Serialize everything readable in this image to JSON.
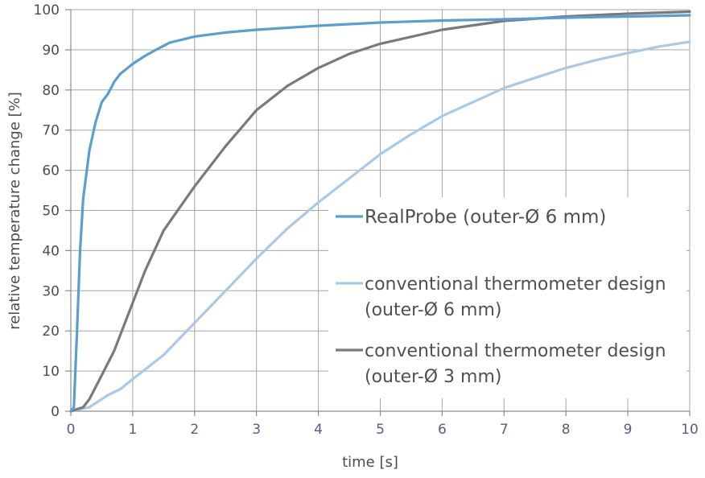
{
  "chart_data": {
    "type": "line",
    "title": "",
    "xlabel": "time [s]",
    "ylabel": "relative temperature change [%]",
    "xlim": [
      0,
      10
    ],
    "ylim": [
      0,
      100
    ],
    "x_ticks": [
      "0",
      "1",
      "2",
      "3",
      "4",
      "5",
      "6",
      "7",
      "8",
      "9",
      "10"
    ],
    "y_ticks": [
      "0",
      "10",
      "20",
      "30",
      "40",
      "50",
      "60",
      "70",
      "80",
      "90",
      "100"
    ],
    "grid": true,
    "legend_position": "inside-right-middle",
    "series": [
      {
        "name": "RealProbe (outer-Ø 6 mm)",
        "color": "#5b9fcf",
        "x": [
          0,
          0.05,
          0.1,
          0.15,
          0.2,
          0.3,
          0.4,
          0.5,
          0.6,
          0.7,
          0.8,
          1.0,
          1.2,
          1.4,
          1.6,
          2.0,
          2.5,
          3.0,
          4.0,
          5.0,
          6.0,
          7.0,
          8.0,
          9.0,
          10.0
        ],
        "values": [
          0,
          1,
          20,
          40,
          53,
          65,
          72,
          77,
          79,
          82,
          84,
          86.5,
          88.5,
          90.2,
          91.8,
          93.3,
          94.3,
          95,
          96,
          96.8,
          97.3,
          97.6,
          98,
          98.3,
          98.6
        ]
      },
      {
        "name": "conventional thermometer design (outer-Ø 6 mm)",
        "color": "#a9c9e6",
        "x": [
          0,
          0.3,
          0.6,
          0.8,
          1.0,
          1.5,
          2.0,
          2.5,
          3.0,
          3.5,
          4.0,
          4.5,
          5.0,
          5.5,
          6.0,
          6.5,
          7.0,
          7.5,
          8.0,
          8.5,
          9.0,
          9.5,
          10.0
        ],
        "values": [
          0,
          1,
          4,
          5.5,
          8,
          14,
          22,
          30,
          38,
          45.5,
          52,
          58,
          64,
          69,
          73.5,
          77,
          80.5,
          83,
          85.5,
          87.5,
          89.2,
          90.8,
          92
        ]
      },
      {
        "name": "conventional thermometer design (outer-Ø 3 mm)",
        "color": "#7a7a7c",
        "x": [
          0,
          0.2,
          0.3,
          0.5,
          0.7,
          0.9,
          1.0,
          1.2,
          1.5,
          2.0,
          2.5,
          3.0,
          3.5,
          4.0,
          4.5,
          5.0,
          6.0,
          7.0,
          8.0,
          9.0,
          10.0
        ],
        "values": [
          0,
          1,
          3,
          9,
          15,
          23,
          27,
          35,
          45,
          56,
          66,
          75,
          81,
          85.5,
          89,
          91.5,
          95,
          97.2,
          98.3,
          99,
          99.5
        ]
      }
    ]
  },
  "legend": {
    "items": [
      {
        "lines": [
          "RealProbe (outer-Ø 6 mm)"
        ],
        "color": "#5b9fcf"
      },
      {
        "lines": [
          "conventional thermometer design",
          "(outer-Ø 6 mm)"
        ],
        "color": "#a9c9e6"
      },
      {
        "lines": [
          "conventional thermometer design",
          "(outer-Ø 3 mm)"
        ],
        "color": "#7a7a7c"
      }
    ]
  }
}
